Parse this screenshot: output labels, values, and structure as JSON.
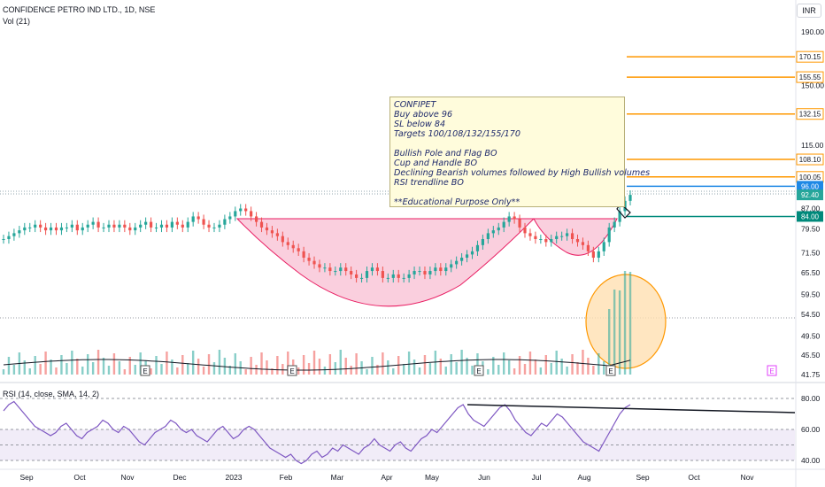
{
  "header": {
    "symbol_title": "CONFIDENCE PETRO IND LTD., 1D, NSE",
    "volume_label": "Vol (21)",
    "currency": "INR"
  },
  "rsi_panel": {
    "title": "RSI (14, close, SMA, 14, 2)"
  },
  "annotation": {
    "lines": [
      "CONFIPET",
      "Buy above 96",
      "SL below 84",
      "Targets 100/108/132/155/170",
      "",
      "Bullish Pole and Flag BO",
      "Cup and Handle BO",
      "Declining Bearish volumes followed by High Bullish volumes",
      "RSI trendline BO",
      "",
      "**Educational Purpose Only**"
    ]
  },
  "earnings_marker": "E",
  "colors": {
    "up": "#26a69a",
    "down": "#ef5350",
    "target": "#ff9800",
    "entry": "#1e88e5",
    "stoploss": "#00897b",
    "cup_fill": "#f8bbd0",
    "cup_stroke": "#e91e63",
    "rsi_line": "#7e57c2",
    "rsi_band": "#ede7f6",
    "volume_ellipse_fill": "#ffe0b2",
    "volume_ellipse_stroke": "#ff9800"
  },
  "chart_data": [
    {
      "type": "candlestick",
      "title": "CONFIDENCE PETRO IND LTD., 1D, NSE",
      "x_ticks": [
        "Sep",
        "Oct",
        "Nov",
        "Dec",
        "2023",
        "Feb",
        "Mar",
        "Apr",
        "May",
        "Jun",
        "Jul",
        "Aug",
        "Sep",
        "Oct",
        "Nov"
      ],
      "y_scale": "log",
      "y_ticks": [
        190.0,
        150.0,
        115.0,
        87.0,
        79.5,
        71.5,
        65.5,
        59.5,
        54.5,
        49.5,
        45.5,
        41.75
      ],
      "price_labels": [
        {
          "value": "170.15",
          "color": "#ff9800",
          "kind": "target"
        },
        {
          "value": "155.55",
          "color": "#ff9800",
          "kind": "target"
        },
        {
          "value": "132.15",
          "color": "#ff9800",
          "kind": "target"
        },
        {
          "value": "108.10",
          "color": "#ff9800",
          "kind": "target"
        },
        {
          "value": "100.05",
          "color": "#ff9800",
          "kind": "target"
        },
        {
          "value": "96.00",
          "color": "#1e88e5",
          "kind": "entry"
        },
        {
          "value": "92.40",
          "color": "#26a69a",
          "kind": "last"
        },
        {
          "value": "84.00",
          "color": "#00897b",
          "kind": "stoploss"
        }
      ],
      "last_price": 92.4,
      "close_series": [
        76,
        77,
        78,
        79,
        80,
        80,
        81,
        80,
        79,
        80,
        79,
        80,
        80,
        81,
        79,
        80,
        81,
        82,
        80,
        80,
        81,
        80,
        81,
        80,
        79,
        80,
        81,
        82,
        80,
        80,
        81,
        80,
        82,
        81,
        80,
        82,
        84,
        83,
        81,
        80,
        80,
        81,
        83,
        84,
        86,
        87,
        86,
        84,
        82,
        80,
        79,
        78,
        77,
        75,
        74,
        73,
        72,
        70,
        69,
        68,
        67,
        67,
        66,
        66,
        67,
        66,
        65,
        64,
        64,
        66,
        67,
        66,
        64,
        64,
        65,
        64,
        64,
        65,
        66,
        66,
        65,
        66,
        67,
        66,
        67,
        68,
        69,
        70,
        71,
        72,
        74,
        76,
        78,
        79,
        80,
        82,
        84,
        83,
        80,
        78,
        77,
        76,
        76,
        75,
        76,
        77,
        77,
        78,
        76,
        75,
        74,
        72,
        70,
        72,
        75,
        80,
        82,
        86,
        90,
        92.4
      ],
      "patterns": [
        "cup and handle",
        "pole and flag",
        "RSI trendline"
      ]
    },
    {
      "type": "bar",
      "name": "Vol (21)",
      "has_moving_average": true,
      "earnings_markers": [
        "E",
        "E",
        "E",
        "E",
        "E"
      ]
    },
    {
      "type": "line",
      "title": "RSI (14, close, SMA, 14, 2)",
      "ylim": [
        40,
        80
      ],
      "y_ticks": [
        80.0,
        60.0,
        40.0
      ],
      "band": [
        40,
        60
      ],
      "values": [
        72,
        76,
        78,
        74,
        70,
        66,
        62,
        60,
        58,
        56,
        58,
        62,
        64,
        60,
        56,
        54,
        58,
        60,
        62,
        66,
        64,
        60,
        58,
        62,
        60,
        56,
        52,
        50,
        54,
        58,
        60,
        62,
        66,
        64,
        60,
        58,
        60,
        56,
        54,
        52,
        56,
        60,
        62,
        58,
        54,
        56,
        60,
        62,
        60,
        56,
        52,
        48,
        46,
        44,
        42,
        44,
        40,
        38,
        40,
        44,
        46,
        42,
        44,
        48,
        46,
        50,
        48,
        46,
        44,
        48,
        50,
        54,
        50,
        48,
        46,
        50,
        52,
        48,
        46,
        50,
        54,
        56,
        60,
        58,
        62,
        66,
        70,
        74,
        76,
        70,
        66,
        64,
        62,
        66,
        70,
        74,
        76,
        72,
        66,
        62,
        58,
        56,
        60,
        64,
        62,
        66,
        70,
        68,
        64,
        60,
        56,
        52,
        50,
        48,
        46,
        52,
        58,
        64,
        70,
        74,
        76
      ]
    }
  ]
}
